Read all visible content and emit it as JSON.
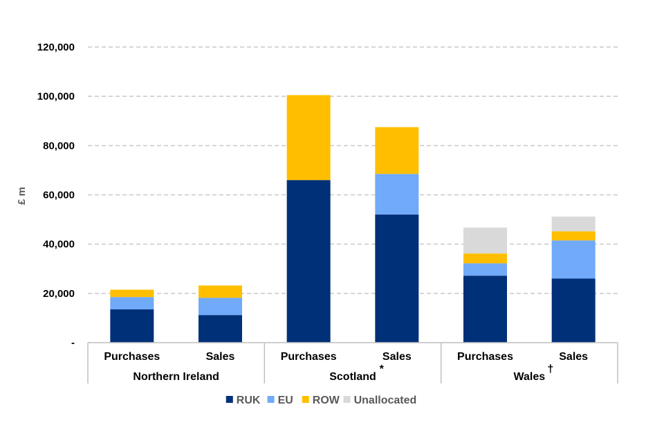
{
  "chart_data": {
    "type": "bar",
    "stacked": true,
    "ylabel": "£ m",
    "ylim": [
      0,
      120000
    ],
    "yticks": [
      0,
      20000,
      40000,
      60000,
      80000,
      100000,
      120000
    ],
    "ytick_labels": [
      "-",
      "20,000",
      "40,000",
      "60,000",
      "80,000",
      "100,000",
      "120,000"
    ],
    "grid": true,
    "legend_position": "bottom",
    "groups": [
      {
        "name": "Northern Ireland",
        "marker": ""
      },
      {
        "name": "Scotland",
        "marker": "*"
      },
      {
        "name": "Wales",
        "marker": "†"
      }
    ],
    "categories": [
      {
        "label": "Purchases",
        "group": 0
      },
      {
        "label": "Sales",
        "group": 0
      },
      {
        "label": "Purchases",
        "group": 1
      },
      {
        "label": "Sales",
        "group": 1
      },
      {
        "label": "Purchases",
        "group": 2
      },
      {
        "label": "Sales",
        "group": 2
      }
    ],
    "series": [
      {
        "name": "RUK",
        "color": "#003078",
        "values": [
          13500,
          11200,
          66000,
          52000,
          27200,
          26000
        ]
      },
      {
        "name": "EU",
        "color": "#70aaf8",
        "values": [
          5000,
          7000,
          0,
          16500,
          5000,
          15500
        ]
      },
      {
        "name": "ROW",
        "color": "#ffbf00",
        "values": [
          3000,
          5000,
          34500,
          19000,
          4000,
          3700
        ]
      },
      {
        "name": "Unallocated",
        "color": "#d9d9d9",
        "values": [
          0,
          0,
          0,
          0,
          10500,
          6000
        ]
      }
    ]
  }
}
